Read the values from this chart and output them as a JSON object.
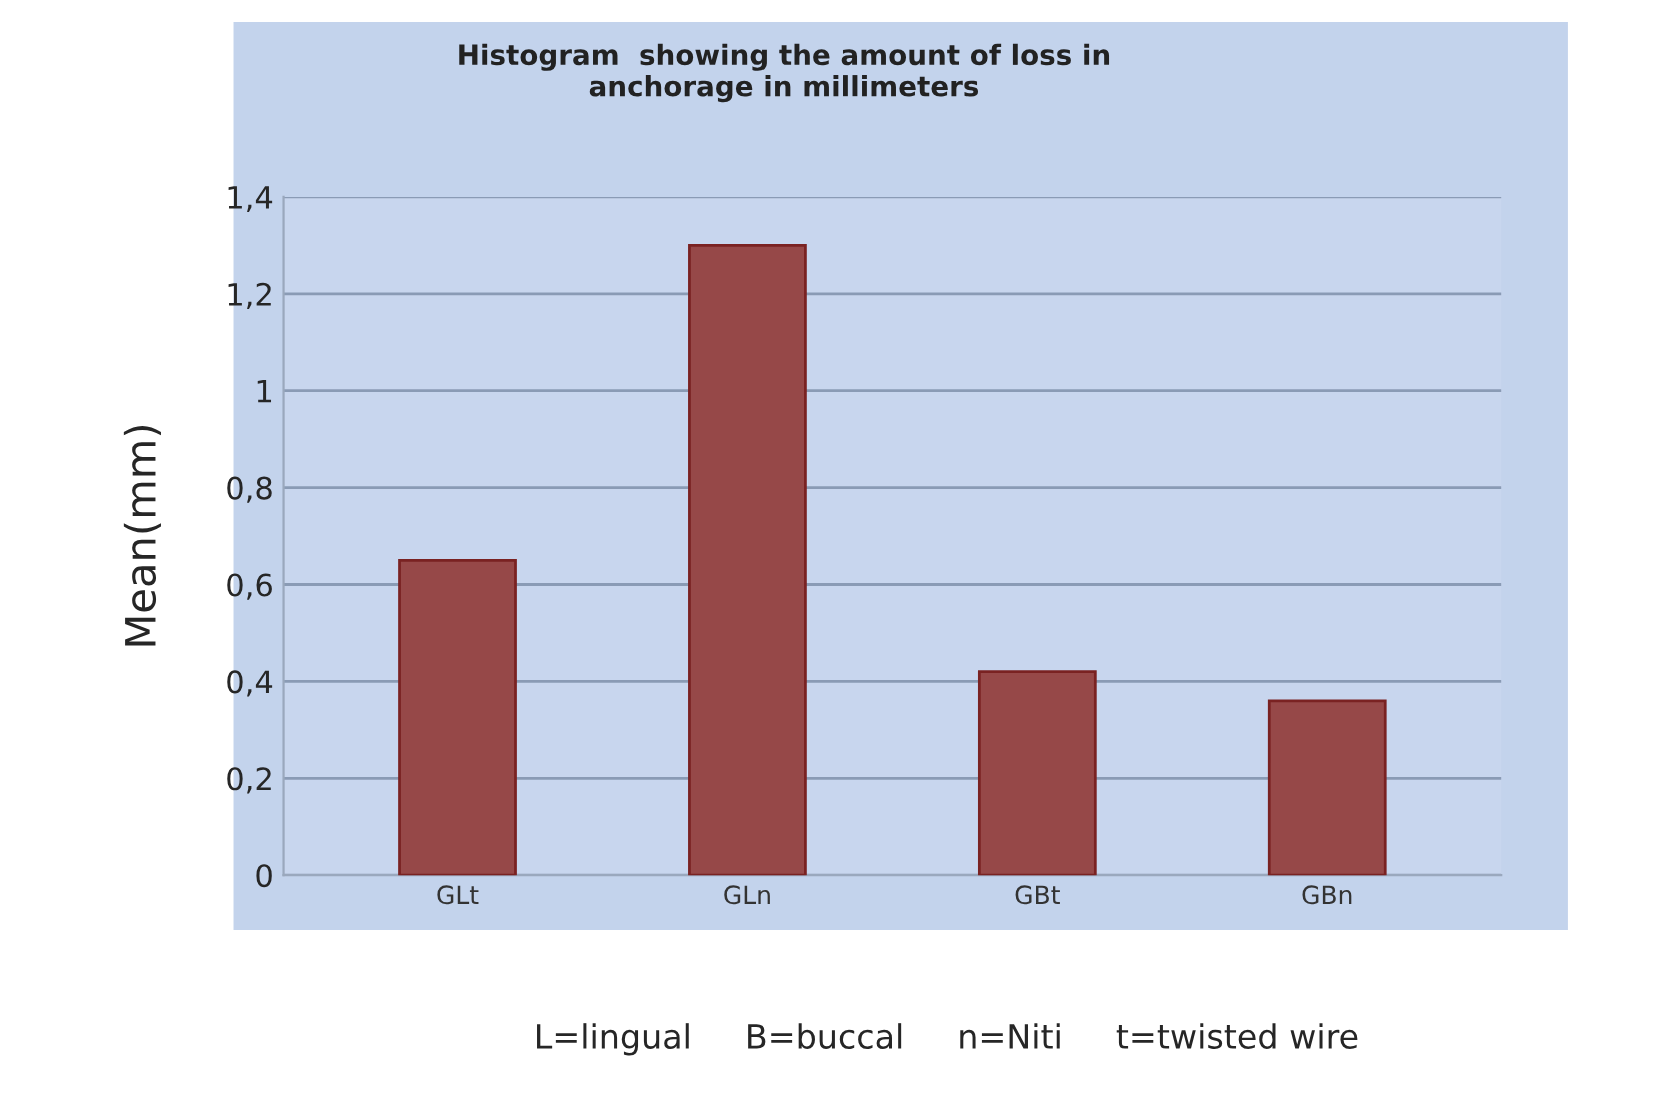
{
  "chart_data": {
    "type": "bar",
    "title": "Histogram  showing the amount of loss in\nanchorage in millimeters",
    "ylabel": "Mean(mm)",
    "categories": [
      "GLt",
      "GLn",
      "GBt",
      "GBn"
    ],
    "values": [
      0.65,
      1.3,
      0.42,
      0.36
    ],
    "color": "#a33b3b",
    "ylim": [
      0,
      1.4
    ],
    "yticks": [
      {
        "value": 0,
        "label": "0"
      },
      {
        "value": 0.2,
        "label": "0,2"
      },
      {
        "value": 0.4,
        "label": "0,4"
      },
      {
        "value": 0.6,
        "label": "0,6"
      },
      {
        "value": 0.8,
        "label": "0,8"
      },
      {
        "value": 1,
        "label": "1"
      },
      {
        "value": 1.2,
        "label": "1,2"
      },
      {
        "value": 1.4,
        "label": "1,4"
      }
    ],
    "grid": "y",
    "annotations": [
      "L=lingual     B=buccal     n=Niti     t=twisted wire"
    ]
  }
}
